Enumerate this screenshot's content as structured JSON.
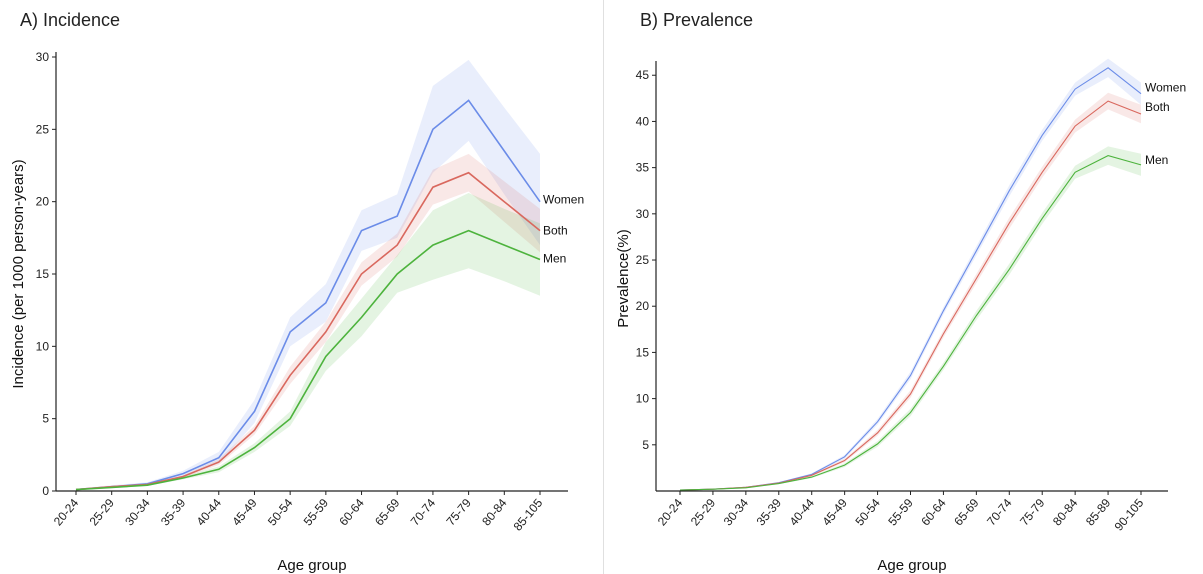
{
  "chart_data": [
    {
      "type": "line",
      "title": "A) Incidence",
      "xlabel": "Age group",
      "ylabel": "Incidence (per 1000 person-years)",
      "ylim": [
        0,
        30
      ],
      "yticks": [
        0,
        5,
        10,
        15,
        20,
        25,
        30
      ],
      "categories": [
        "20-24",
        "25-29",
        "30-34",
        "35-39",
        "40-44",
        "45-49",
        "50-54",
        "55-59",
        "60-64",
        "65-69",
        "70-74",
        "75-79",
        "80-84",
        "85-105"
      ],
      "grid": false,
      "series": [
        {
          "name": "Women",
          "color": "#6b8ce8",
          "values": [
            0.1,
            0.3,
            0.5,
            1.2,
            2.3,
            5.5,
            11,
            13,
            18,
            19,
            25,
            27,
            23.5,
            20
          ],
          "lower": [
            0.05,
            0.2,
            0.4,
            1.0,
            1.9,
            4.7,
            10,
            11.7,
            16.6,
            17.5,
            22,
            24.2,
            20.5,
            17
          ],
          "upper": [
            0.15,
            0.4,
            0.6,
            1.4,
            2.7,
            6.3,
            12,
            14.3,
            19.4,
            20.5,
            28,
            29.8,
            26.5,
            23.3
          ]
        },
        {
          "name": "Both",
          "color": "#d9685e",
          "values": [
            0.1,
            0.3,
            0.45,
            1.0,
            2.0,
            4.2,
            8.0,
            11,
            15,
            17,
            21,
            22,
            20,
            18
          ],
          "lower": [
            0.07,
            0.25,
            0.4,
            0.9,
            1.8,
            3.9,
            7.4,
            10.3,
            14.2,
            16.2,
            19.8,
            20.7,
            18.6,
            16.5
          ],
          "upper": [
            0.13,
            0.35,
            0.5,
            1.1,
            2.2,
            4.5,
            8.6,
            11.7,
            15.8,
            17.8,
            22.2,
            23.3,
            21.4,
            19.5
          ]
        },
        {
          "name": "Men",
          "color": "#4db33d",
          "values": [
            0.1,
            0.25,
            0.4,
            0.9,
            1.5,
            3.0,
            5.0,
            9.3,
            12,
            15,
            17,
            18,
            17,
            16
          ],
          "lower": [
            0.07,
            0.2,
            0.35,
            0.8,
            1.3,
            2.7,
            4.5,
            8.3,
            10.7,
            13.7,
            14.6,
            15.4,
            14.5,
            13.5
          ],
          "upper": [
            0.13,
            0.3,
            0.45,
            1.0,
            1.7,
            3.3,
            5.5,
            10.3,
            13.3,
            16.3,
            19.4,
            20.6,
            19.5,
            18.5
          ]
        }
      ]
    },
    {
      "type": "line",
      "title": "B) Prevalence",
      "xlabel": "Age group",
      "ylabel": "Prevalence(%)",
      "ylim": [
        0,
        46
      ],
      "yticks": [
        5,
        10,
        15,
        20,
        25,
        30,
        35,
        40,
        45
      ],
      "categories": [
        "20-24",
        "25-29",
        "30-34",
        "35-39",
        "40-44",
        "45-49",
        "50-54",
        "55-59",
        "60-64",
        "65-69",
        "70-74",
        "75-79",
        "80-84",
        "85-89",
        "90-105"
      ],
      "grid": false,
      "series": [
        {
          "name": "Women",
          "color": "#6b8ce8",
          "values": [
            0.1,
            0.2,
            0.4,
            0.9,
            1.8,
            3.7,
            7.5,
            12.5,
            19.5,
            26,
            32.5,
            38.5,
            43.5,
            45.8,
            43
          ],
          "lower": [
            0.08,
            0.17,
            0.35,
            0.85,
            1.7,
            3.5,
            7.2,
            12.1,
            19.1,
            25.5,
            31.9,
            37.9,
            42.8,
            44.8,
            41.8
          ],
          "upper": [
            0.12,
            0.23,
            0.45,
            0.95,
            1.9,
            3.9,
            7.8,
            12.9,
            19.9,
            26.5,
            33.1,
            39.1,
            44.2,
            46.8,
            44.2
          ]
        },
        {
          "name": "Both",
          "color": "#d9685e",
          "values": [
            0.1,
            0.2,
            0.4,
            0.85,
            1.7,
            3.3,
            6.3,
            10.5,
            17,
            23,
            29,
            34.5,
            39.5,
            42.2,
            40.8
          ],
          "lower": [
            0.08,
            0.17,
            0.35,
            0.8,
            1.6,
            3.1,
            6.0,
            10.1,
            16.6,
            22.5,
            28.4,
            33.9,
            38.8,
            41.3,
            39.8
          ],
          "upper": [
            0.12,
            0.23,
            0.45,
            0.9,
            1.8,
            3.5,
            6.6,
            10.9,
            17.4,
            23.5,
            29.6,
            35.1,
            40.2,
            43.1,
            41.8
          ]
        },
        {
          "name": "Men",
          "color": "#4db33d",
          "values": [
            0.1,
            0.2,
            0.35,
            0.8,
            1.5,
            2.8,
            5.1,
            8.5,
            13.5,
            19,
            24,
            29.5,
            34.5,
            36.3,
            35.3
          ],
          "lower": [
            0.08,
            0.17,
            0.3,
            0.75,
            1.4,
            2.6,
            4.8,
            8.1,
            13.1,
            18.5,
            23.4,
            28.9,
            33.8,
            35.3,
            34.1
          ],
          "upper": [
            0.12,
            0.23,
            0.4,
            0.85,
            1.6,
            3.0,
            5.4,
            8.9,
            13.9,
            19.5,
            24.6,
            30.1,
            35.2,
            37.3,
            36.5
          ]
        }
      ]
    }
  ]
}
